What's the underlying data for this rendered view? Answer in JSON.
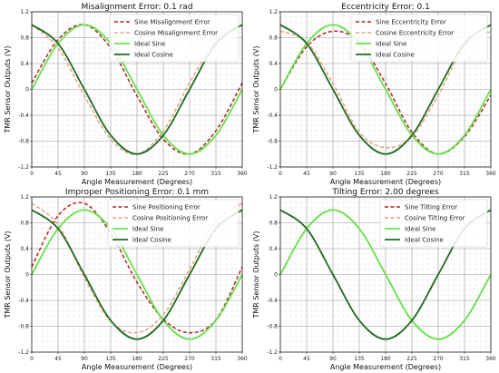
{
  "chart_data": [
    {
      "type": "line",
      "title": "Misalignment Error: 0.1 rad",
      "xlabel": "Angle Measurement (Degrees)",
      "ylabel": "TMR Sensor Outputs (V)",
      "xlim": [
        0,
        360
      ],
      "ylim": [
        -1.2,
        1.2
      ],
      "xticks": [
        0,
        45,
        90,
        135,
        180,
        225,
        270,
        315,
        360
      ],
      "yticks": [
        -1.2,
        -0.8,
        -0.4,
        0,
        0.4,
        0.8,
        1.2
      ],
      "grid": true,
      "legend_position": "upper-right",
      "series": [
        {
          "name": "Sine Misalignment Error",
          "color": "#b22222",
          "dash": true,
          "x": [
            0,
            45,
            90,
            135,
            180,
            225,
            270,
            315,
            360
          ],
          "y": [
            0.1,
            0.77,
            1.0,
            0.64,
            -0.1,
            -0.77,
            -1.0,
            -0.64,
            0.1
          ]
        },
        {
          "name": "Cosine Misalignment Error",
          "color": "#e8a080",
          "dash": true,
          "x": [
            0,
            45,
            90,
            135,
            180,
            225,
            270,
            315,
            360
          ],
          "y": [
            1.0,
            0.64,
            -0.1,
            -0.77,
            -1.0,
            -0.64,
            0.1,
            0.77,
            1.0
          ]
        },
        {
          "name": "Ideal Sine",
          "color": "#66e24a",
          "dash": false,
          "x": [
            0,
            45,
            90,
            135,
            180,
            225,
            270,
            315,
            360
          ],
          "y": [
            0.0,
            0.71,
            1.0,
            0.71,
            0.0,
            -0.71,
            -1.0,
            -0.71,
            0.0
          ]
        },
        {
          "name": "Ideal Cosine",
          "color": "#1f6b1f",
          "dash": false,
          "x": [
            0,
            45,
            90,
            135,
            180,
            225,
            270,
            315,
            360
          ],
          "y": [
            1.0,
            0.71,
            0.0,
            -0.71,
            -1.0,
            -0.71,
            0.0,
            0.71,
            1.0
          ]
        }
      ]
    },
    {
      "type": "line",
      "title": "Eccentricity Error: 0.1",
      "xlabel": "Angle Measurement (Degrees)",
      "ylabel": "TMR Sensor Outputs (V)",
      "xlim": [
        0,
        360
      ],
      "ylim": [
        -1.2,
        1.2
      ],
      "xticks": [
        0,
        45,
        90,
        135,
        180,
        225,
        270,
        315,
        360
      ],
      "yticks": [
        -1.2,
        -0.8,
        -0.4,
        0,
        0.4,
        0.8,
        1.2
      ],
      "grid": true,
      "legend_position": "upper-right",
      "series": [
        {
          "name": "Sine Eccentricity Error",
          "color": "#b22222",
          "dash": true,
          "x": [
            0,
            45,
            90,
            135,
            180,
            225,
            270,
            315,
            360
          ],
          "y": [
            0.0,
            0.66,
            0.9,
            0.73,
            0.09,
            -0.66,
            -1.0,
            -0.73,
            -0.09
          ]
        },
        {
          "name": "Cosine Eccentricity Error",
          "color": "#e8a080",
          "dash": true,
          "x": [
            0,
            45,
            90,
            135,
            180,
            225,
            270,
            315,
            360
          ],
          "y": [
            0.9,
            0.73,
            0.09,
            -0.66,
            -0.9,
            -0.73,
            -0.09,
            0.66,
            0.9
          ]
        },
        {
          "name": "Ideal Sine",
          "color": "#66e24a",
          "dash": false,
          "x": [
            0,
            45,
            90,
            135,
            180,
            225,
            270,
            315,
            360
          ],
          "y": [
            0.0,
            0.71,
            1.0,
            0.71,
            0.0,
            -0.71,
            -1.0,
            -0.71,
            0.0
          ]
        },
        {
          "name": "Ideal Cosine",
          "color": "#1f6b1f",
          "dash": false,
          "x": [
            0,
            45,
            90,
            135,
            180,
            225,
            270,
            315,
            360
          ],
          "y": [
            1.0,
            0.71,
            0.0,
            -0.71,
            -1.0,
            -0.71,
            0.0,
            0.71,
            1.0
          ]
        }
      ]
    },
    {
      "type": "line",
      "title": "Improper Positioning Error: 0.1 mm",
      "xlabel": "Angle Measurement (Degrees)",
      "ylabel": "TMR Sensor Outputs (V)",
      "xlim": [
        0,
        360
      ],
      "ylim": [
        -1.2,
        1.2
      ],
      "xticks": [
        0,
        45,
        90,
        135,
        180,
        225,
        270,
        315,
        360
      ],
      "yticks": [
        -1.2,
        -0.8,
        -0.4,
        0,
        0.4,
        0.8,
        1.2
      ],
      "grid": true,
      "legend_position": "upper-right",
      "series": [
        {
          "name": "Sine Positioning Error",
          "color": "#b22222",
          "dash": true,
          "x": [
            0,
            45,
            90,
            135,
            180,
            225,
            270,
            315,
            360
          ],
          "y": [
            0.12,
            0.91,
            1.1,
            0.64,
            -0.12,
            -0.69,
            -0.9,
            -0.7,
            0.12
          ]
        },
        {
          "name": "Cosine Positioning Error",
          "color": "#e8a080",
          "dash": true,
          "x": [
            0,
            45,
            90,
            135,
            180,
            225,
            270,
            315,
            360
          ],
          "y": [
            1.1,
            0.77,
            -0.05,
            -0.72,
            -0.9,
            -0.62,
            0.08,
            0.83,
            1.1
          ]
        },
        {
          "name": "Ideal Sine",
          "color": "#66e24a",
          "dash": false,
          "x": [
            0,
            45,
            90,
            135,
            180,
            225,
            270,
            315,
            360
          ],
          "y": [
            0.0,
            0.71,
            1.0,
            0.71,
            0.0,
            -0.71,
            -1.0,
            -0.71,
            0.0
          ]
        },
        {
          "name": "Ideal Cosine",
          "color": "#1f6b1f",
          "dash": false,
          "x": [
            0,
            45,
            90,
            135,
            180,
            225,
            270,
            315,
            360
          ],
          "y": [
            1.0,
            0.71,
            0.0,
            -0.71,
            -1.0,
            -0.71,
            0.0,
            0.71,
            1.0
          ]
        }
      ]
    },
    {
      "type": "line",
      "title": "Tilting Error: 2.00 degrees",
      "xlabel": "Angle Measurement (Degrees)",
      "ylabel": "TMR Sensor Outputs (V)",
      "xlim": [
        0,
        360
      ],
      "ylim": [
        -1.2,
        1.2
      ],
      "xticks": [
        0,
        45,
        90,
        135,
        180,
        225,
        270,
        315,
        360
      ],
      "yticks": [
        -1.2,
        -0.8,
        -0.4,
        0,
        0.4,
        0.8,
        1.2
      ],
      "grid": true,
      "legend_position": "upper-right",
      "series": [
        {
          "name": "Sine Tilting Error",
          "color": "#b22222",
          "dash": true,
          "x": [
            0,
            45,
            90,
            135,
            180,
            225,
            270,
            315,
            360
          ],
          "y": [
            0.0,
            0.71,
            0.999,
            0.71,
            0.0,
            -0.71,
            -0.999,
            -0.71,
            0.0
          ]
        },
        {
          "name": "Cosine Tilting Error",
          "color": "#e8a080",
          "dash": true,
          "x": [
            0,
            45,
            90,
            135,
            180,
            225,
            270,
            315,
            360
          ],
          "y": [
            0.999,
            0.71,
            0.0,
            -0.71,
            -0.999,
            -0.71,
            0.0,
            0.71,
            0.999
          ]
        },
        {
          "name": "Ideal Sine",
          "color": "#66e24a",
          "dash": false,
          "x": [
            0,
            45,
            90,
            135,
            180,
            225,
            270,
            315,
            360
          ],
          "y": [
            0.0,
            0.71,
            1.0,
            0.71,
            0.0,
            -0.71,
            -1.0,
            -0.71,
            0.0
          ]
        },
        {
          "name": "Ideal Cosine",
          "color": "#1f6b1f",
          "dash": false,
          "x": [
            0,
            45,
            90,
            135,
            180,
            225,
            270,
            315,
            360
          ],
          "y": [
            1.0,
            0.71,
            0.0,
            -0.71,
            -1.0,
            -0.71,
            0.0,
            0.71,
            1.0
          ]
        }
      ]
    }
  ]
}
